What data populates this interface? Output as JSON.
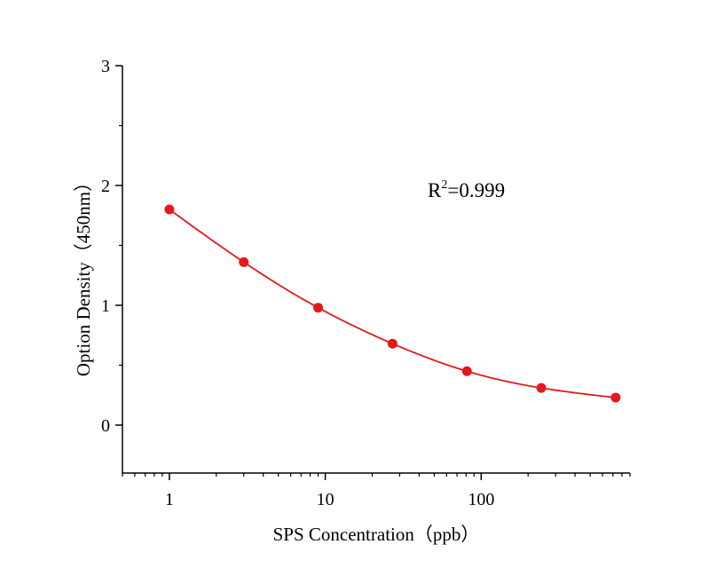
{
  "chart_data": {
    "type": "scatter",
    "title": "",
    "xlabel": "SPS Concentration（ppb）",
    "ylabel": "Option Density（450nm）",
    "x_scale": "log",
    "xlim": [
      0.5,
      900
    ],
    "ylim": [
      -0.4,
      3
    ],
    "x_ticks": [
      1,
      10,
      100
    ],
    "x_tick_labels": [
      "1",
      "10",
      "100"
    ],
    "y_ticks": [
      0,
      1,
      2,
      3
    ],
    "y_tick_labels": [
      "0",
      "1",
      "2",
      "3"
    ],
    "grid": false,
    "legend": "none",
    "annotation": {
      "base": "R",
      "sup": "2",
      "rest": "=0.999"
    },
    "series": [
      {
        "x": [
          1,
          3,
          9,
          27,
          81,
          243,
          729
        ],
        "y": [
          1.8,
          1.36,
          0.98,
          0.68,
          0.45,
          0.31,
          0.23
        ],
        "color": "#e31a1c",
        "fit_line": true
      }
    ]
  }
}
